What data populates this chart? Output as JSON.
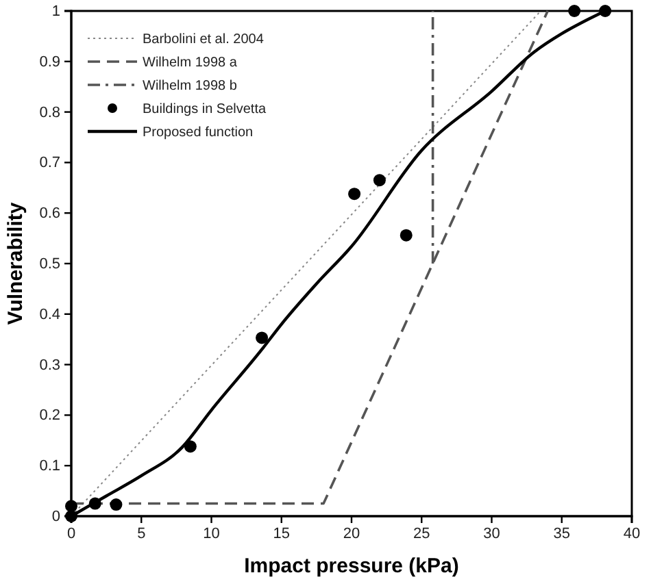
{
  "chart_data": {
    "type": "line",
    "xlabel": "Impact pressure (kPa)",
    "ylabel": "Vulnerability",
    "xlim": [
      0,
      40
    ],
    "ylim": [
      0,
      1
    ],
    "xticks": [
      0,
      5,
      10,
      15,
      20,
      25,
      30,
      35,
      40
    ],
    "yticks": [
      0,
      0.1,
      0.2,
      0.3,
      0.4,
      0.5,
      0.6,
      0.7,
      0.8,
      0.9,
      1
    ],
    "grid": false,
    "legend": "top left",
    "series": [
      {
        "name": "Barbolini et al. 2004",
        "line_style": "dotted",
        "color": "#888888",
        "x": [
          0,
          33.5
        ],
        "values": [
          0,
          1
        ]
      },
      {
        "name": "Wilhelm 1998 a",
        "line_style": "dashed",
        "color": "#555555",
        "x": [
          0,
          18,
          34
        ],
        "values": [
          0.025,
          0.025,
          1
        ]
      },
      {
        "name": "Wilhelm 1998 b",
        "line_style": "dashdot",
        "color": "#555555",
        "x": [
          25.8,
          25.8
        ],
        "values": [
          0.5,
          1
        ]
      },
      {
        "name": "Buildings in Selvetta",
        "type": "scatter",
        "marker": "circle",
        "color": "#000000",
        "x": [
          0,
          0,
          1.7,
          3.2,
          8.5,
          13.6,
          20.2,
          22,
          23.9,
          35.9,
          38.1
        ],
        "values": [
          0,
          0.02,
          0.025,
          0.023,
          0.138,
          0.353,
          0.638,
          0.665,
          0.556,
          1,
          1
        ]
      },
      {
        "name": "Proposed function",
        "line_style": "solid",
        "color": "#000000",
        "x": [
          0,
          2.5,
          5,
          7.9,
          10,
          13.6,
          15,
          17.5,
          20,
          25,
          30,
          33,
          35,
          37,
          38.1
        ],
        "values": [
          0,
          0.04,
          0.08,
          0.136,
          0.21,
          0.33,
          0.38,
          0.46,
          0.534,
          0.724,
          0.841,
          0.918,
          0.955,
          0.985,
          1
        ]
      }
    ]
  }
}
